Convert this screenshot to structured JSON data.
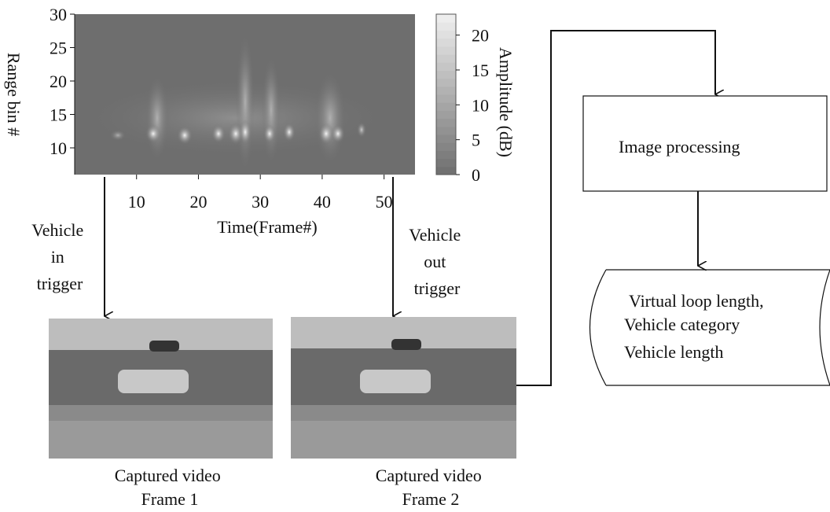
{
  "heatmap": {
    "x_label": "Time(Frame#)",
    "y_label": "Range bin #",
    "xlim": [
      0,
      55
    ],
    "xticks": [
      10,
      20,
      30,
      40,
      50
    ],
    "ylim": [
      6,
      30
    ],
    "yticks": [
      10,
      15,
      20,
      25,
      30
    ],
    "colorbar": {
      "label": "Amplitude (dB)",
      "lim": [
        0,
        23
      ],
      "ticks": [
        0,
        5,
        10,
        15,
        20
      ]
    }
  },
  "triggers": [
    {
      "label_lines": [
        "Vehicle",
        "in",
        "trigger"
      ]
    },
    {
      "label_lines": [
        "Vehicle",
        "out",
        "trigger"
      ]
    }
  ],
  "frames": [
    {
      "caption_lines": [
        "Captured video",
        "Frame 1"
      ]
    },
    {
      "caption_lines": [
        "Captured video",
        "Frame 2"
      ]
    }
  ],
  "nodes": [
    {
      "label": "Image processing"
    },
    {
      "label_lines": [
        "Virtual loop length,",
        "Vehicle category",
        "Vehicle length"
      ]
    }
  ]
}
